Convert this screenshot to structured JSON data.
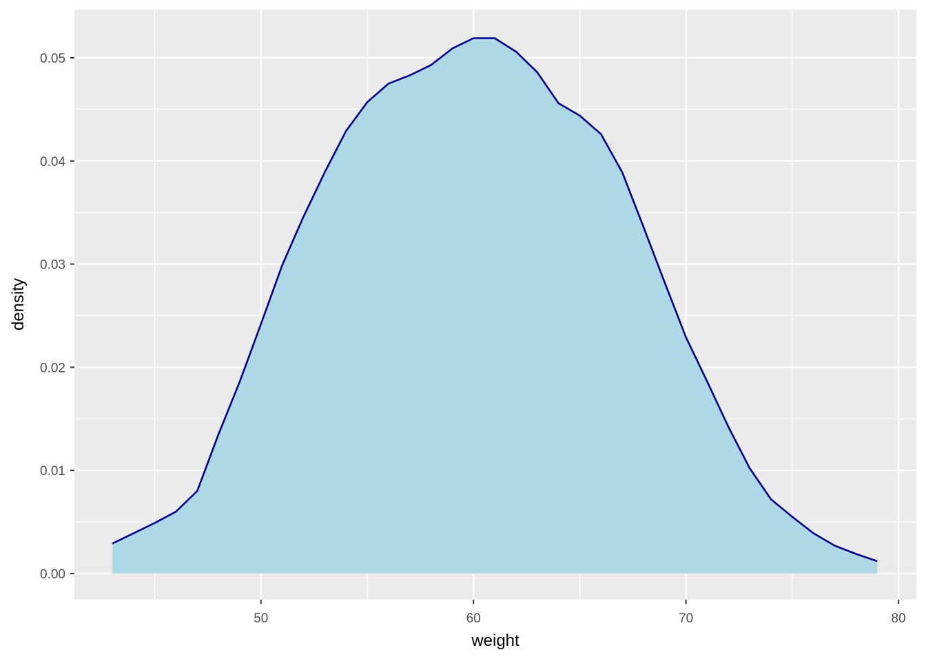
{
  "chart_data": {
    "type": "density",
    "x_label": "weight",
    "y_label": "density",
    "x": [
      43,
      44,
      45,
      46,
      47,
      48,
      49,
      50,
      51,
      52,
      53,
      54,
      55,
      56,
      57,
      58,
      59,
      60,
      61,
      62,
      63,
      64,
      65,
      66,
      67,
      68,
      69,
      70,
      71,
      72,
      73,
      74,
      75,
      76,
      77,
      78,
      79
    ],
    "values": [
      0.0029,
      0.0039,
      0.0049,
      0.006,
      0.008,
      0.0135,
      0.0186,
      0.0242,
      0.0299,
      0.0346,
      0.0389,
      0.0429,
      0.0457,
      0.0475,
      0.0483,
      0.0493,
      0.0509,
      0.0519,
      0.0519,
      0.0506,
      0.0486,
      0.0456,
      0.0444,
      0.0426,
      0.0389,
      0.0336,
      0.0282,
      0.0229,
      0.0186,
      0.0142,
      0.0102,
      0.0072,
      0.0055,
      0.0039,
      0.0027,
      0.0019,
      0.0012
    ],
    "fill_color": "#add8e6",
    "line_color": "#00008b",
    "xlim": [
      41.22,
      80.84
    ],
    "ylim": [
      -0.00254,
      0.05467
    ],
    "xticks": [
      50,
      60,
      70,
      80
    ],
    "yticks": [
      {
        "value": 0,
        "label": "0.00"
      },
      {
        "value": 0.01,
        "label": "0.01"
      },
      {
        "value": 0.02,
        "label": "0.02"
      },
      {
        "value": 0.03,
        "label": "0.03"
      },
      {
        "value": 0.04,
        "label": "0.04"
      },
      {
        "value": 0.05,
        "label": "0.05"
      }
    ],
    "x_minor_ticks": [
      45,
      55,
      65,
      75
    ],
    "y_minor_ticks": [
      0.005,
      0.015,
      0.025,
      0.035,
      0.045
    ],
    "grid": true
  }
}
